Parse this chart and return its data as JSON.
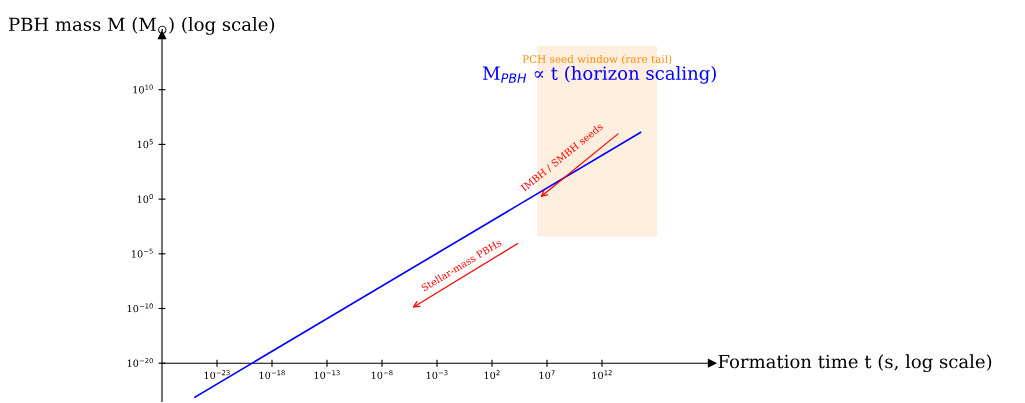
{
  "chart_data": {
    "type": "line",
    "xlabel": "Formation time t (s, log scale)",
    "ylabel": "PBH mass M (M$_{⊙}$) (log scale)",
    "log": "xy",
    "grid": false,
    "legend": false,
    "marker": "none",
    "line_style": "solid",
    "xlim": [
      1e-28,
      1e+22
    ],
    "ylim": [
      3.16e-19,
      1000000000000000.0
    ],
    "xticks": [
      {
        "value": 1e-23,
        "label": "10$^{−23}$"
      },
      {
        "value": 1e-18,
        "label": "10$^{−18}$"
      },
      {
        "value": 1e-13,
        "label": "10$^{−13}$"
      },
      {
        "value": 1e-08,
        "label": "10$^{−8}$"
      },
      {
        "value": 0.001,
        "label": "10$^{−3}$"
      },
      {
        "value": 100.0,
        "label": "10$^{2}$"
      },
      {
        "value": 10000000.0,
        "label": "10$^{7}$"
      },
      {
        "value": 1000000000000.0,
        "label": "10$^{12}$"
      }
    ],
    "yticks": [
      {
        "value": 1e-15,
        "label": "10$^{−20}$"
      },
      {
        "value": 1e-10,
        "label": "10$^{−10}$"
      },
      {
        "value": 1e-05,
        "label": "10$^{−5}$"
      },
      {
        "value": 1,
        "label": "10$^{0}$"
      },
      {
        "value": 100000.0,
        "label": "10$^{5}$"
      },
      {
        "value": 10000000000.0,
        "label": "10$^{10}$"
      }
    ],
    "bands": [
      {
        "axis": "x",
        "from": 1300000.0,
        "to": 1e+17,
        "label": "PCH seed window (rare tail)",
        "color": "#fdeedd"
      }
    ],
    "series": [
      {
        "x": [
          1e-25,
          3200000000000000.0
        ],
        "values": [
          7.9e-19,
          1260000.0
        ],
        "color": "#0000ff"
      }
    ],
    "annotations": [
      "M$_{PBH}$ ∝ t (horizon scaling)",
      "Stellar-mass PBHs",
      "IMBH / SMBH seeds"
    ]
  }
}
